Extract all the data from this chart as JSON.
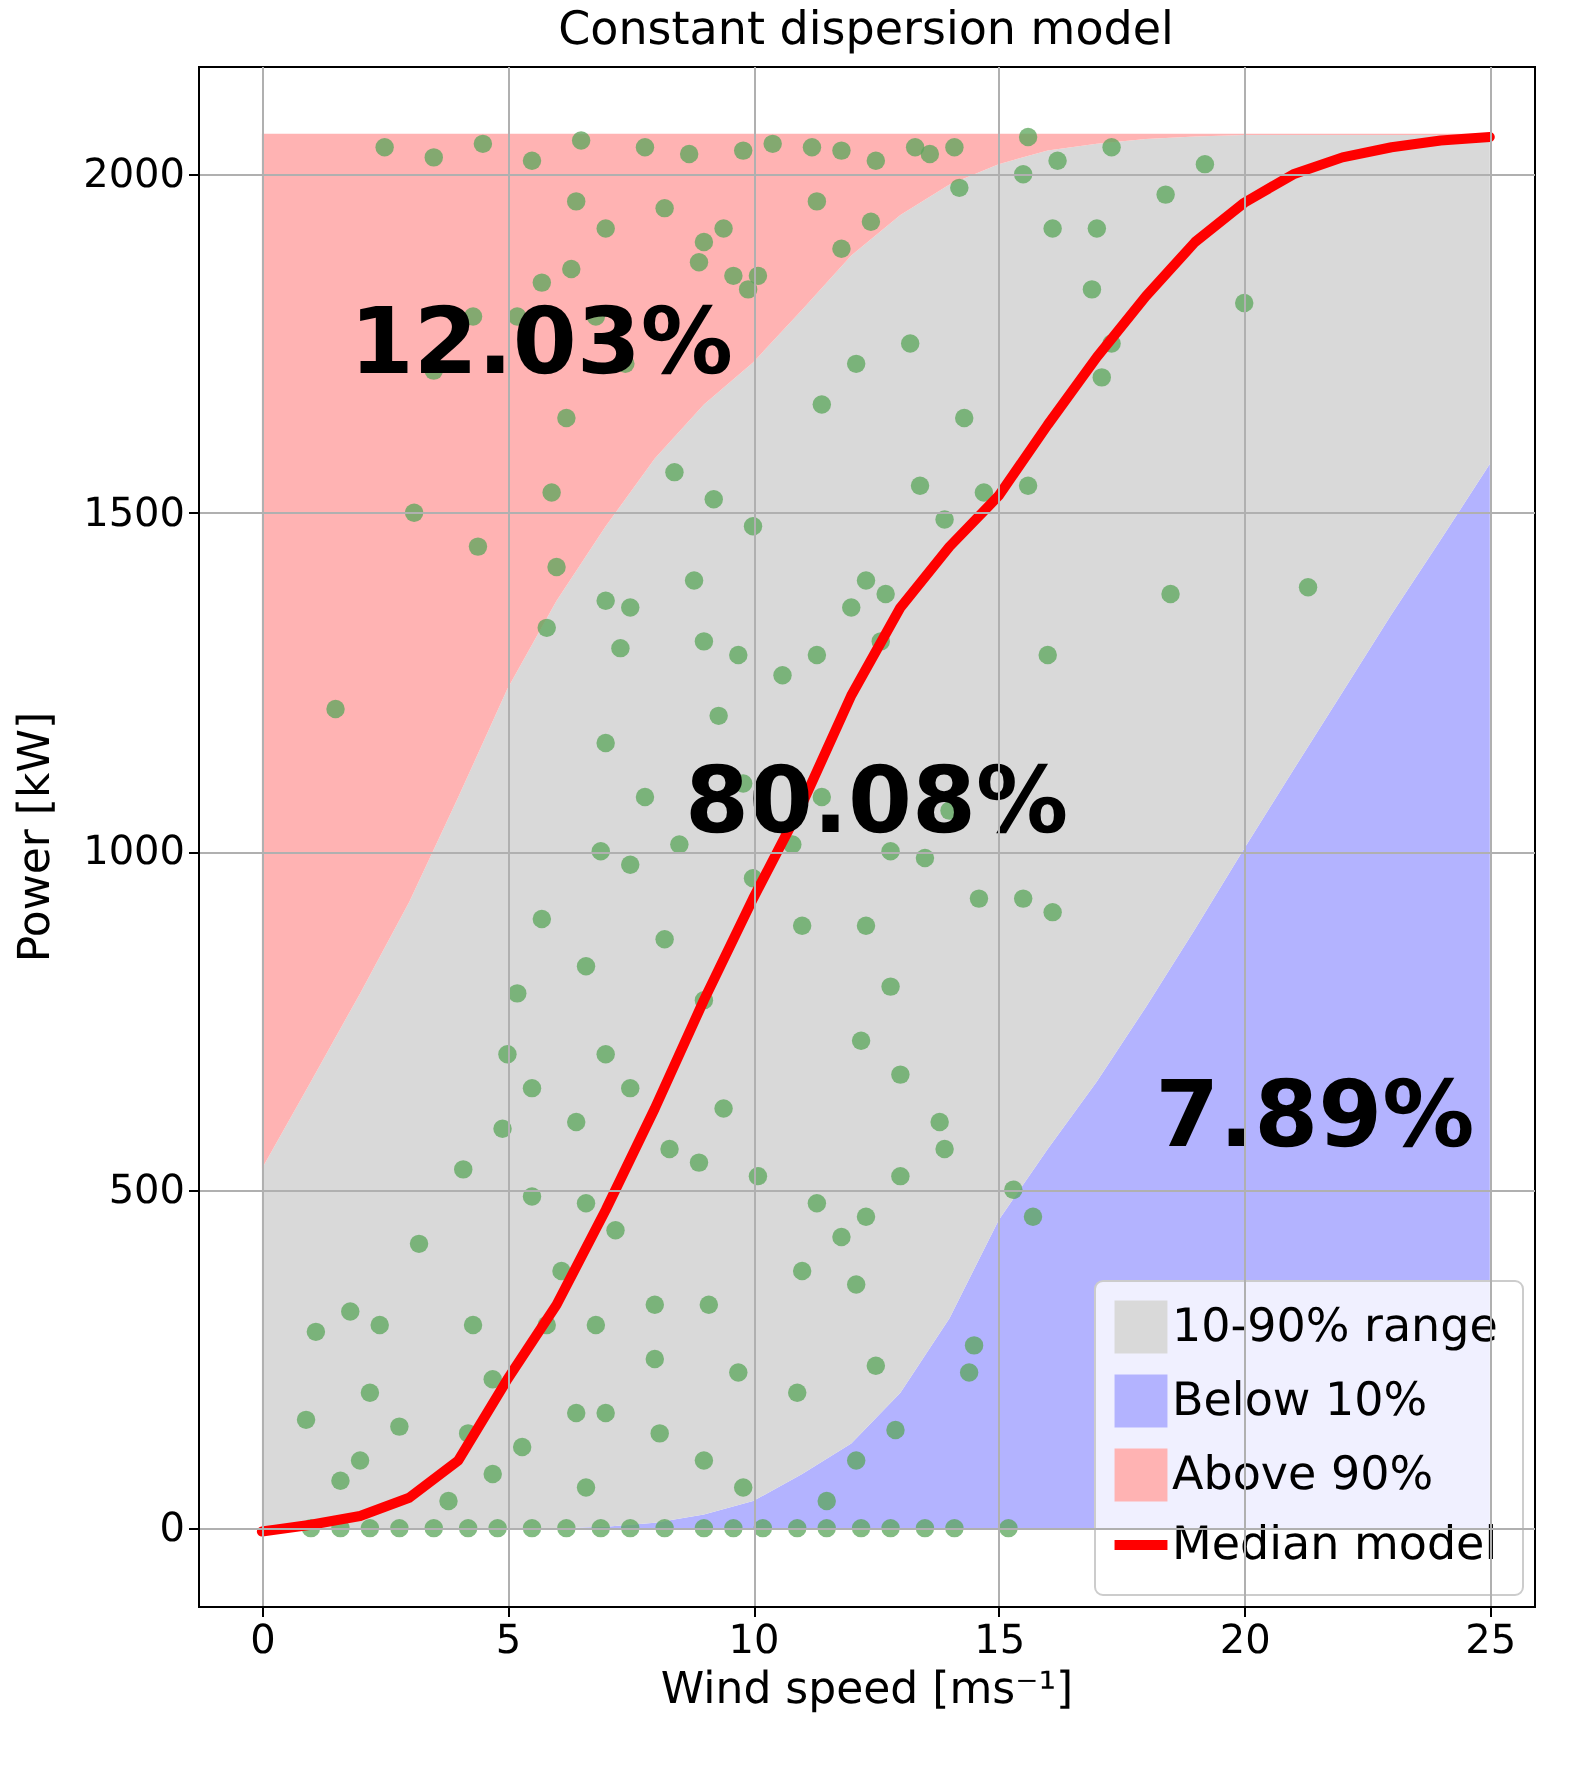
{
  "chart_data": {
    "type": "area",
    "stacked": true,
    "title": "Constant dispersion model",
    "xlabel": "Wind speed [ms⁻¹]",
    "ylabel": "Power [kW]",
    "x": [
      0,
      1,
      2,
      3,
      4,
      5,
      6,
      7,
      8,
      9,
      10,
      11,
      12,
      13,
      14,
      15,
      16,
      17,
      18,
      19,
      20,
      21,
      22,
      23,
      24,
      25
    ],
    "series": [
      {
        "name": "Below 10%",
        "color": "#b3b3ff",
        "values": [
          0,
          0,
          0,
          0,
          0,
          0,
          0,
          2,
          8,
          20,
          40,
          80,
          125,
          200,
          310,
          455,
          560,
          660,
          770,
          885,
          1004,
          1120,
          1235,
          1350,
          1460,
          1572
        ]
      },
      {
        "name": "10-90% range",
        "color": "#d9d9d9",
        "values": [
          531,
          660,
          790,
          925,
          1080,
          1240,
          1370,
          1478,
          1572,
          1640,
          1682,
          1720,
          1755,
          1740,
          1675,
          1560,
          1475,
          1385,
          1282,
          1171,
          1054,
          938,
          823,
          708,
          598,
          486
        ]
      },
      {
        "name": "Above 90%",
        "color": "#ffb3b3",
        "values": [
          1529,
          1400,
          1270,
          1135,
          980,
          820,
          690,
          580,
          480,
          400,
          338,
          260,
          180,
          120,
          75,
          45,
          25,
          15,
          8,
          4,
          2,
          2,
          2,
          2,
          2,
          2
        ]
      },
      {
        "type": "scatter",
        "color": "#5aa55a",
        "x": [
          2.5,
          3.5,
          4.5,
          5.5,
          6.5,
          7.8,
          8.7,
          9.8,
          10.4,
          11.2,
          11.8,
          12.5,
          13.3,
          13.6,
          14.1,
          15.6,
          16.2,
          17.3,
          19.2,
          17.0,
          18.4,
          6.4,
          7.0,
          8.2,
          9.0,
          8.9,
          9.4,
          10.1,
          11.3,
          5.7,
          6.3,
          9.6,
          9.9,
          4.3,
          5.2,
          6.8,
          7.4,
          3.5,
          6.2,
          3.1,
          4.4,
          5.9,
          6.0,
          5.8,
          1.5,
          8.4,
          9.2,
          10.0,
          8.8,
          7.5,
          7.0,
          7.3,
          9.0,
          9.7,
          10.6,
          11.3,
          12.0,
          12.7,
          12.3,
          12.6,
          13.9,
          13.4,
          14.7,
          15.6,
          14.3,
          13.2,
          11.4,
          12.1,
          11.8,
          12.4,
          14.2,
          15.5,
          16.1,
          16.9,
          17.1,
          20.0,
          21.3,
          18.5,
          17.3,
          16.0,
          14.0,
          12.8,
          11.4,
          10.8,
          13.5,
          15.5,
          12.3,
          12.8,
          12.2,
          13.0,
          14.6,
          16.1,
          13.8,
          11.0,
          10.0,
          9.8,
          9.3,
          7.0,
          6.9,
          7.8,
          8.2,
          7.5,
          8.5,
          9.0,
          6.4,
          7.0,
          6.6,
          5.2,
          5.7,
          5.0,
          5.5,
          4.1,
          3.2,
          4.9,
          5.5,
          6.6,
          5.8,
          7.5,
          8.3,
          8.9,
          9.4,
          10.1,
          11.3,
          11.8,
          11.0,
          12.3,
          12.1,
          13.0,
          13.9,
          12.5,
          10.9,
          9.1,
          8.0,
          7.2,
          6.8,
          8.0,
          9.7,
          6.1,
          4.3,
          2.4,
          1.8,
          1.1,
          2.2,
          0.9,
          2.8,
          2.0,
          1.6,
          4.2,
          4.7,
          5.3,
          6.4,
          4.7,
          7.0,
          8.1,
          9.0,
          3.8,
          6.6,
          9.8,
          11.5,
          15.7,
          15.3,
          12.9,
          14.4,
          14.5,
          12.1,
          1.0,
          1.6,
          2.2,
          2.8,
          3.5,
          4.2,
          4.8,
          5.5,
          6.2,
          6.9,
          7.5,
          8.2,
          9.0,
          9.6,
          10.2,
          10.9,
          11.5,
          12.2,
          12.8,
          13.5,
          14.1,
          15.2
        ],
        "values": [
          2040,
          2025,
          2045,
          2020,
          2050,
          2040,
          2030,
          2035,
          2045,
          2040,
          2035,
          2020,
          2040,
          2030,
          2040,
          2055,
          2020,
          2040,
          2015,
          1920,
          1970,
          1960,
          1920,
          1950,
          1900,
          1870,
          1920,
          1850,
          1960,
          1840,
          1860,
          1850,
          1830,
          1790,
          1790,
          1790,
          1720,
          1710,
          1640,
          1500,
          1450,
          1530,
          1420,
          1330,
          1210,
          1560,
          1520,
          1480,
          1400,
          1360,
          1370,
          1300,
          1310,
          1290,
          1260,
          1290,
          1360,
          1380,
          1400,
          1310,
          1490,
          1540,
          1530,
          1540,
          1640,
          1750,
          1660,
          1720,
          1890,
          1930,
          1980,
          2000,
          1920,
          1830,
          1700,
          1810,
          1390,
          1380,
          1750,
          1290,
          1060,
          1000,
          1080,
          1010,
          990,
          930,
          890,
          800,
          720,
          670,
          930,
          910,
          600,
          890,
          960,
          1100,
          1200,
          1160,
          1000,
          1080,
          870,
          980,
          1010,
          780,
          600,
          700,
          830,
          790,
          900,
          700,
          650,
          530,
          420,
          590,
          490,
          480,
          300,
          650,
          560,
          540,
          620,
          520,
          480,
          430,
          380,
          460,
          360,
          520,
          560,
          240,
          200,
          330,
          330,
          440,
          300,
          250,
          230,
          380,
          300,
          300,
          320,
          290,
          200,
          160,
          150,
          100,
          70,
          140,
          80,
          120,
          170,
          220,
          170,
          140,
          100,
          40,
          60,
          60,
          40,
          460,
          500,
          145,
          230,
          270,
          100,
          0,
          0,
          0,
          0,
          0,
          0,
          0,
          0,
          0,
          0,
          0,
          0,
          0,
          0,
          0,
          0,
          0,
          0,
          0,
          0,
          0,
          0
        ]
      },
      {
        "name": "Median model",
        "type": "line",
        "color": "#ff0000",
        "values": [
          -5,
          5,
          18,
          45,
          100,
          220,
          330,
          470,
          620,
          780,
          930,
          1070,
          1230,
          1360,
          1450,
          1525,
          1630,
          1730,
          1820,
          1900,
          1958,
          2000,
          2025,
          2040,
          2050,
          2055
        ]
      }
    ],
    "annotations": [
      "12.03%",
      "80.08%",
      "7.89%"
    ],
    "xlim": [
      -1.3,
      25.9
    ],
    "xticks": [
      0,
      5,
      10,
      15,
      20,
      25
    ],
    "ylim": [
      -115,
      2160
    ],
    "yticks": [
      0,
      500,
      1000,
      1500,
      2000
    ],
    "grid": true,
    "legend": "bottom right"
  }
}
